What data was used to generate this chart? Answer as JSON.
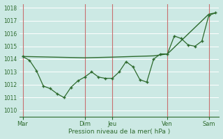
{
  "background_color": "#cce9e4",
  "grid_color": "#ffffff",
  "line_color": "#2d6a2d",
  "vline_color": "#c87070",
  "tick_color": "#2d6a2d",
  "title": "Pression niveau de la mer( hPa )",
  "ylim": [
    1009.5,
    1018.3
  ],
  "yticks": [
    1010,
    1011,
    1012,
    1013,
    1014,
    1015,
    1016,
    1017,
    1018
  ],
  "day_labels": [
    "Mar",
    "Dim",
    "Jeu",
    "Ven",
    "Sam"
  ],
  "day_positions": [
    0.5,
    9.5,
    13.5,
    21.5,
    27.5
  ],
  "vline_positions": [
    0.5,
    9.5,
    13.5,
    21.5,
    27.5
  ],
  "x_total_min": 0,
  "x_total_max": 29,
  "line1_x": [
    0.5,
    1.5,
    2.5,
    3.5,
    4.5,
    5.5,
    6.5,
    7.5,
    8.5,
    9.5,
    10.5,
    11.5,
    12.5,
    13.5,
    14.5,
    15.5,
    16.5,
    17.5,
    18.5,
    19.5,
    20.5,
    21.5,
    22.5,
    23.5,
    24.5,
    25.5,
    26.5,
    27.5,
    28.5
  ],
  "line1_y": [
    1014.2,
    1013.9,
    1013.1,
    1011.9,
    1011.7,
    1011.3,
    1011.0,
    1011.8,
    1012.3,
    1012.6,
    1013.0,
    1012.6,
    1012.5,
    1012.5,
    1013.0,
    1013.8,
    1013.4,
    1012.4,
    1012.2,
    1014.0,
    1014.4,
    1014.4,
    1015.8,
    1015.6,
    1015.1,
    1015.0,
    1015.4,
    1017.4,
    1017.6
  ],
  "line2_x": [
    0.5,
    9.5,
    13.5,
    19.5,
    21.5,
    27.5,
    28.5
  ],
  "line2_y": [
    1014.2,
    1014.1,
    1014.15,
    1014.25,
    1014.4,
    1017.5,
    1017.6
  ]
}
